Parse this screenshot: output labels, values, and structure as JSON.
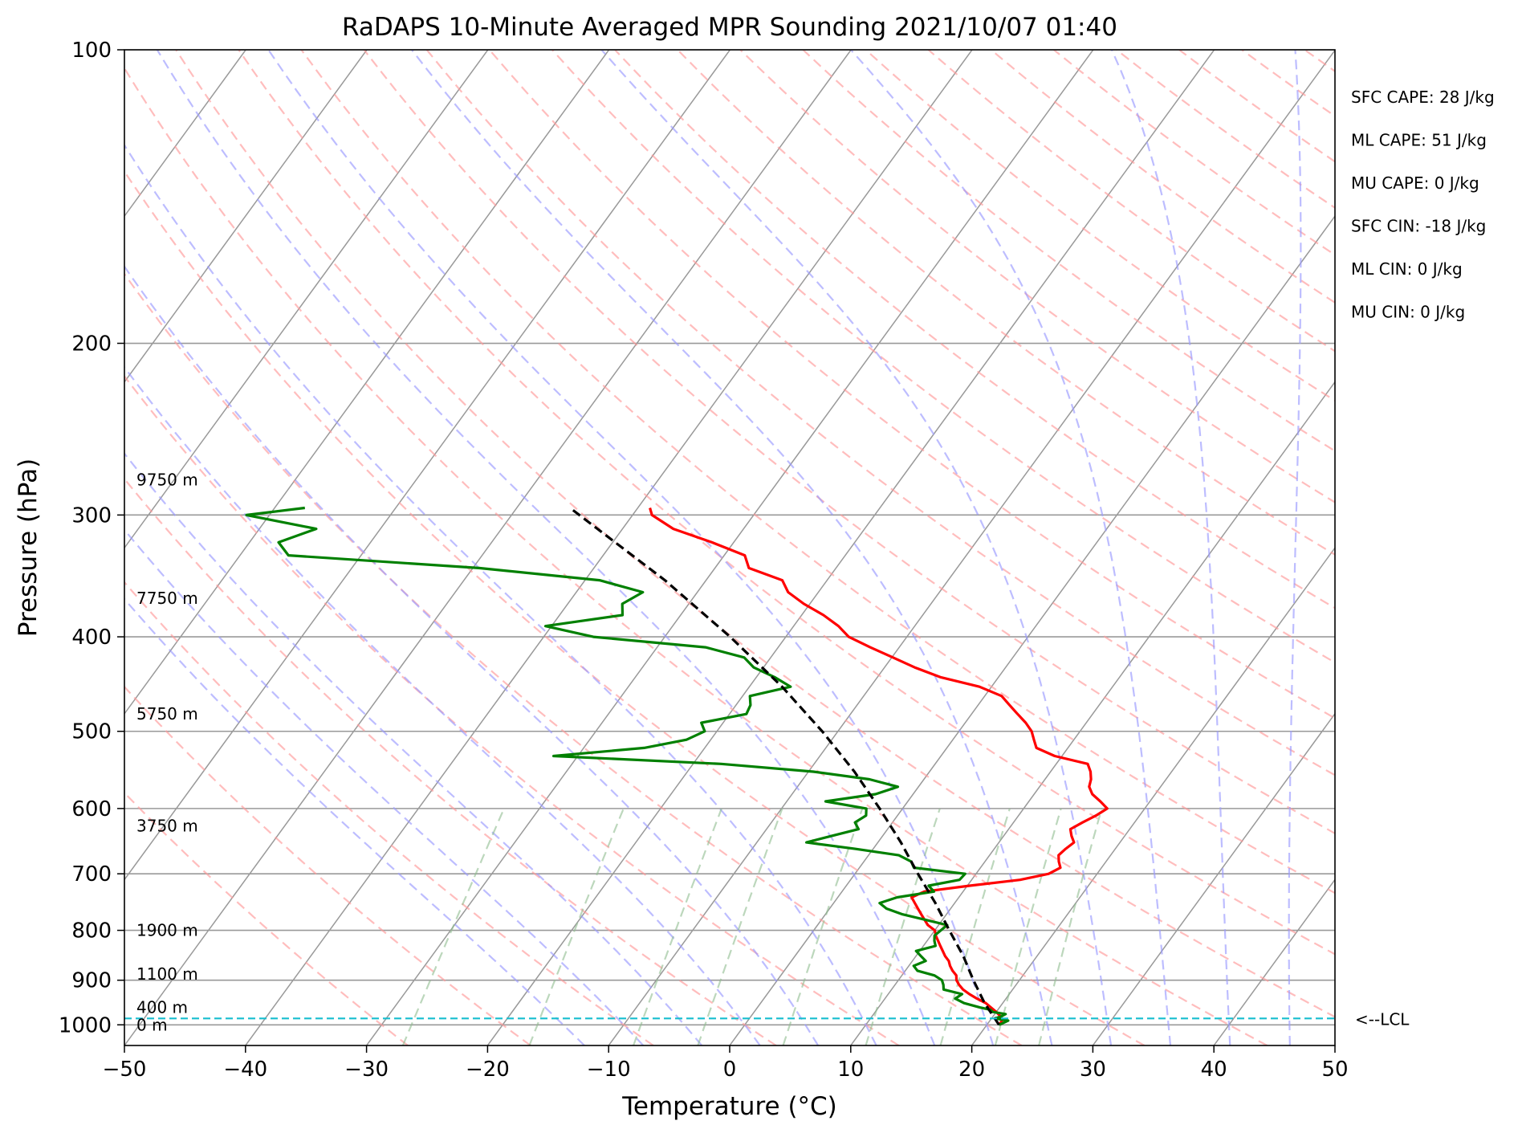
{
  "chart_data": {
    "type": "skew-t",
    "title": "RaDAPS 10-Minute Averaged MPR Sounding 2021/10/07 01:40",
    "xlabel": "Temperature (°C)",
    "ylabel": "Pressure (hPa)",
    "xlim": [
      -50,
      50
    ],
    "ylim": [
      1050,
      100
    ],
    "y_scale": "log",
    "x_ticks": [
      -50,
      -40,
      -30,
      -20,
      -10,
      0,
      10,
      20,
      30,
      40,
      50
    ],
    "x_tick_labels": [
      "−50",
      "−40",
      "−30",
      "−20",
      "−10",
      "0",
      "10",
      "20",
      "30",
      "40",
      "50"
    ],
    "y_ticks": [
      100,
      200,
      300,
      400,
      500,
      600,
      700,
      800,
      900,
      1000
    ],
    "y_tick_labels": [
      "100",
      "200",
      "300",
      "400",
      "500",
      "600",
      "700",
      "800",
      "900",
      "1000"
    ],
    "grid": true,
    "colors": {
      "temperature": "#ff0000",
      "dewpoint": "#008000",
      "parcel": "#000000",
      "lcl": "#17becf",
      "dry_adiabat": "#ff9999",
      "moist_adiabat": "#9999ff",
      "mixing_ratio": "#8fbc8f",
      "isotherm": "#999999"
    },
    "series": [
      {
        "id": "temperature",
        "pressure": [
          1000,
          990,
          980,
          970,
          960,
          950,
          940,
          930,
          920,
          910,
          900,
          890,
          880,
          870,
          860,
          850,
          840,
          830,
          820,
          810,
          800,
          790,
          780,
          770,
          760,
          750,
          740,
          730,
          720,
          710,
          700,
          690,
          680,
          670,
          660,
          650,
          640,
          630,
          620,
          610,
          600,
          590,
          580,
          570,
          560,
          550,
          540,
          530,
          520,
          510,
          500,
          490,
          480,
          470,
          460,
          450,
          440,
          430,
          420,
          410,
          400,
          390,
          380,
          370,
          360,
          350,
          340,
          330,
          320,
          310,
          300,
          295
        ],
        "values": [
          21.0,
          21.0,
          20.6,
          20.0,
          19.3,
          18.6,
          17.6,
          16.7,
          15.9,
          15.3,
          14.8,
          14.5,
          13.9,
          13.4,
          13.0,
          12.4,
          11.9,
          11.4,
          10.9,
          10.4,
          10.0,
          9.1,
          8.5,
          7.9,
          7.3,
          6.7,
          6.1,
          6.8,
          10.2,
          14.0,
          16.0,
          16.6,
          16.1,
          15.7,
          15.9,
          16.2,
          15.6,
          15.1,
          15.7,
          16.4,
          16.9,
          15.9,
          14.8,
          14.1,
          13.8,
          13.3,
          12.6,
          9.4,
          7.4,
          6.7,
          6.0,
          5.0,
          3.8,
          2.6,
          1.4,
          -1.0,
          -4.8,
          -7.5,
          -9.9,
          -12.4,
          -14.8,
          -16.3,
          -18.2,
          -20.5,
          -22.5,
          -23.7,
          -27.2,
          -28.3,
          -31.8,
          -35.8,
          -38.4,
          -39.0
        ]
      },
      {
        "id": "dewpoint",
        "pressure": [
          1000,
          990,
          985,
          980,
          975,
          970,
          965,
          960,
          950,
          940,
          930,
          920,
          910,
          900,
          890,
          880,
          870,
          860,
          850,
          840,
          830,
          820,
          810,
          800,
          790,
          780,
          770,
          760,
          750,
          740,
          730,
          720,
          710,
          700,
          690,
          680,
          670,
          660,
          650,
          640,
          630,
          620,
          610,
          600,
          590,
          580,
          570,
          560,
          550,
          540,
          530,
          520,
          510,
          500,
          490,
          480,
          470,
          460,
          450,
          440,
          430,
          420,
          410,
          400,
          390,
          380,
          370,
          360,
          350,
          340,
          330,
          320,
          310,
          300,
          295
        ],
        "values": [
          21.0,
          21.5,
          20.3,
          20.7,
          20.9,
          19.7,
          19.4,
          18.4,
          16.8,
          15.8,
          16.1,
          14.3,
          14.0,
          13.6,
          12.7,
          11.0,
          10.4,
          11.1,
          10.4,
          9.7,
          11.0,
          10.6,
          10.3,
          10.5,
          10.7,
          8.5,
          6.3,
          4.7,
          3.8,
          4.9,
          7.6,
          6.8,
          9.0,
          9.1,
          4.5,
          3.9,
          2.5,
          -1.5,
          -5.9,
          -4.2,
          -2.4,
          -3.1,
          -2.6,
          -3.0,
          -6.8,
          -3.1,
          -1.7,
          -4.5,
          -9.6,
          -17.7,
          -32.0,
          -25.0,
          -22.0,
          -21.0,
          -21.8,
          -18.6,
          -18.8,
          -19.4,
          -16.6,
          -18.5,
          -20.8,
          -22.2,
          -26.0,
          -35.9,
          -40.5,
          -34.8,
          -35.5,
          -34.5,
          -38.8,
          -49.5,
          -66.0,
          -67.6,
          -65.3,
          -71.9,
          -67.5
        ]
      },
      {
        "id": "parcel",
        "pressure": [
          1000,
          950,
          900,
          850,
          800,
          750,
          700,
          650,
          600,
          550,
          500,
          450,
          400,
          350,
          300,
          295
        ],
        "values": [
          21.0,
          18.5,
          16.2,
          13.9,
          11.2,
          8.4,
          5.2,
          1.9,
          -1.9,
          -6.2,
          -11.3,
          -17.3,
          -24.6,
          -33.4,
          -44.4,
          -45.6
        ]
      }
    ],
    "lcl_pressure": 985,
    "height_labels": [
      {
        "text": "0 m",
        "pressure": 1000
      },
      {
        "text": "400 m",
        "pressure": 960
      },
      {
        "text": "1100 m",
        "pressure": 887
      },
      {
        "text": "1900 m",
        "pressure": 800
      },
      {
        "text": "3750 m",
        "pressure": 625
      },
      {
        "text": "5750 m",
        "pressure": 480
      },
      {
        "text": "7750 m",
        "pressure": 365
      },
      {
        "text": "9750 m",
        "pressure": 276
      }
    ],
    "stats": [
      "SFC CAPE: 28 J/kg",
      "ML CAPE: 51 J/kg",
      "MU CAPE: 0 J/kg",
      "SFC CIN: -18 J/kg",
      "ML CIN: 0 J/kg",
      "MU CIN: 0 J/kg"
    ],
    "lcl_text": "<--LCL",
    "dry_adiabat_thetas_c": [
      -30,
      -20,
      -10,
      0,
      10,
      20,
      30,
      40,
      50,
      60,
      70,
      80,
      90,
      100,
      110,
      120,
      130,
      140,
      150,
      160,
      170,
      180,
      190,
      200,
      210,
      220,
      230,
      240
    ],
    "moist_adiabat_thetaw_c": [
      -15,
      -10,
      -5,
      0,
      5,
      10,
      15,
      20,
      25,
      30,
      35,
      40,
      45
    ],
    "mixing_ratio_gkg": [
      0.4,
      1,
      2,
      3,
      5,
      8,
      12,
      16,
      20
    ]
  }
}
